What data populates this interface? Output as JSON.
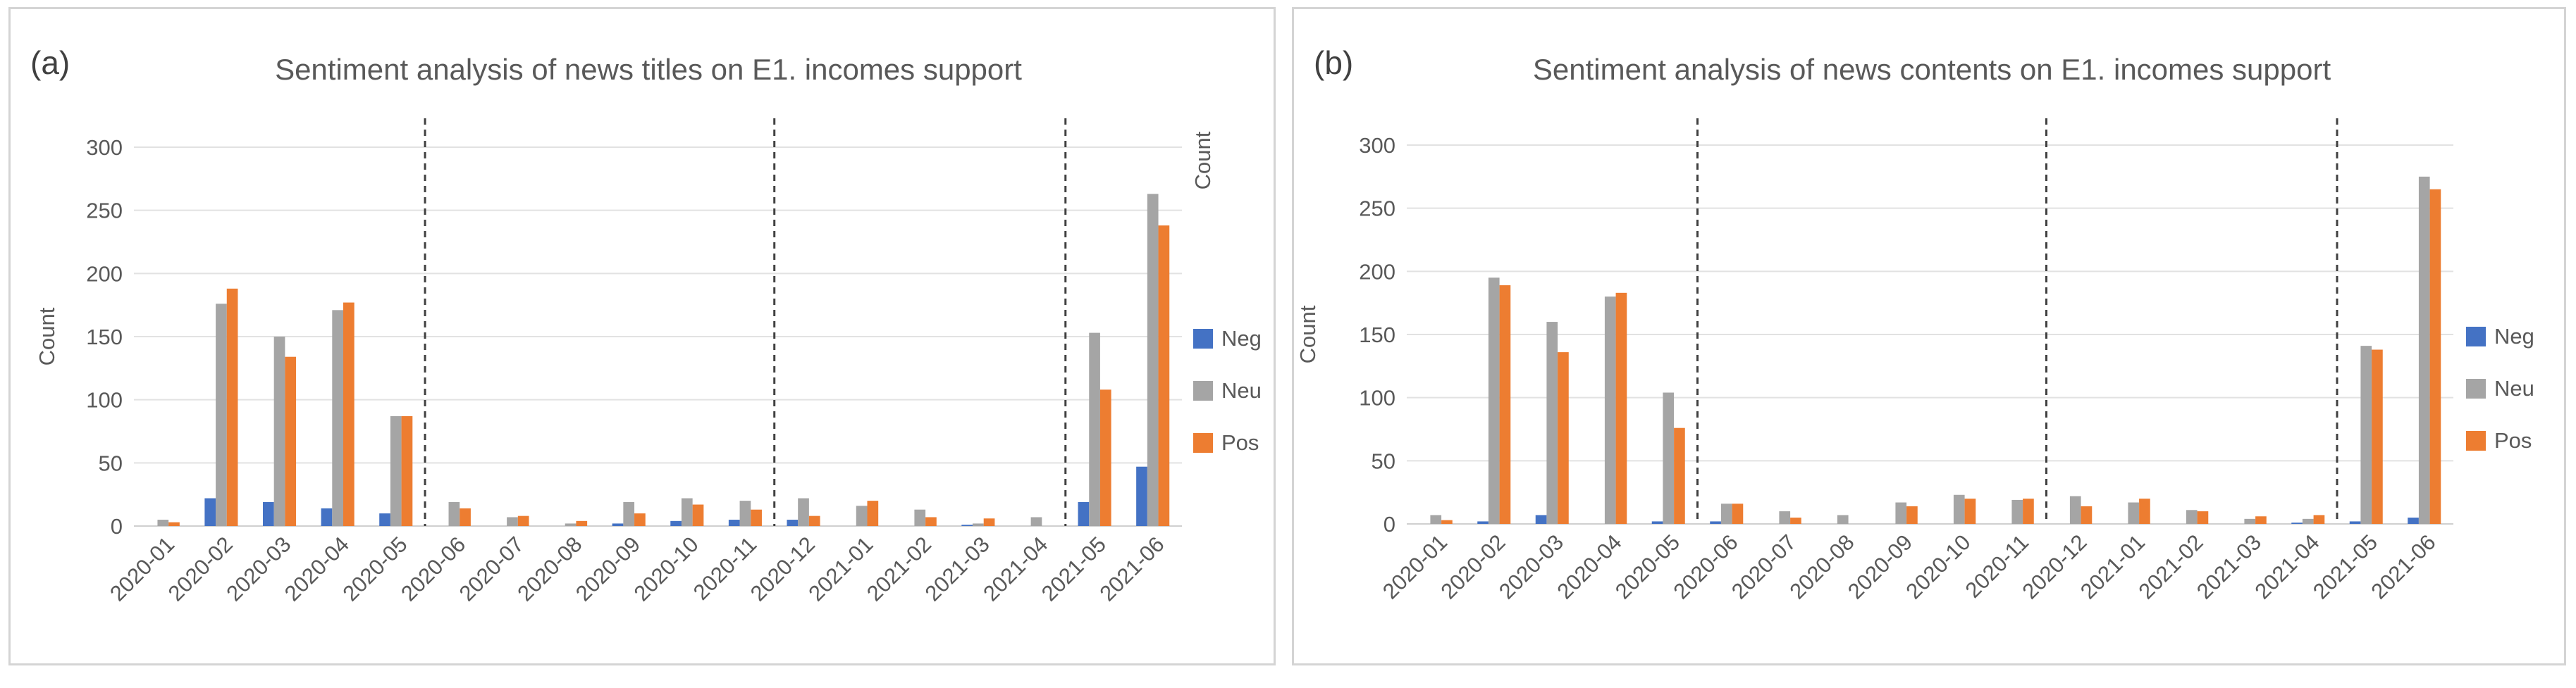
{
  "chart_data": [
    {
      "type": "bar",
      "panel_label": "(a)",
      "title": "Sentiment analysis of news titles on E1. incomes support",
      "xlabel": "",
      "ylabel": "Count",
      "right_label": "Count",
      "ylim": [
        0,
        300
      ],
      "yticks": [
        0,
        50,
        100,
        150,
        200,
        250,
        300
      ],
      "grid": true,
      "legend_position": "right",
      "categories": [
        "2020-01",
        "2020-02",
        "2020-03",
        "2020-04",
        "2020-05",
        "2020-06",
        "2020-07",
        "2020-08",
        "2020-09",
        "2020-10",
        "2020-11",
        "2020-12",
        "2021-01",
        "2021-02",
        "2021-03",
        "2021-04",
        "2021-05",
        "2021-06"
      ],
      "dividers_after": [
        "2020-05",
        "2020-11",
        "2021-04"
      ],
      "series": [
        {
          "name": "Neg",
          "color": "#4472C4",
          "values": [
            0,
            22,
            19,
            14,
            10,
            0,
            0,
            0,
            2,
            4,
            5,
            5,
            0,
            0,
            1,
            0,
            19,
            47
          ]
        },
        {
          "name": "Neu",
          "color": "#A5A5A5",
          "values": [
            5,
            176,
            150,
            171,
            87,
            19,
            7,
            2,
            19,
            22,
            20,
            22,
            16,
            13,
            2,
            7,
            153,
            263
          ]
        },
        {
          "name": "Pos",
          "color": "#ED7D31",
          "values": [
            3,
            188,
            134,
            177,
            87,
            14,
            8,
            4,
            10,
            17,
            13,
            8,
            20,
            7,
            6,
            0,
            108,
            238
          ]
        }
      ]
    },
    {
      "type": "bar",
      "panel_label": "(b)",
      "title": "Sentiment analysis of news contents on E1. incomes support",
      "xlabel": "",
      "ylabel": "Count",
      "ylim": [
        0,
        300
      ],
      "yticks": [
        0,
        50,
        100,
        150,
        200,
        250,
        300
      ],
      "grid": true,
      "legend_position": "right",
      "categories": [
        "2020-01",
        "2020-02",
        "2020-03",
        "2020-04",
        "2020-05",
        "2020-06",
        "2020-07",
        "2020-08",
        "2020-09",
        "2020-10",
        "2020-11",
        "2020-12",
        "2021-01",
        "2021-02",
        "2021-03",
        "2021-04",
        "2021-05",
        "2021-06"
      ],
      "dividers_after": [
        "2020-05",
        "2020-11",
        "2021-04"
      ],
      "series": [
        {
          "name": "Neg",
          "color": "#4472C4",
          "values": [
            0,
            2,
            7,
            0,
            2,
            2,
            0,
            0,
            0,
            0,
            0,
            0,
            0,
            0,
            0,
            1,
            2,
            5
          ]
        },
        {
          "name": "Neu",
          "color": "#A5A5A5",
          "values": [
            7,
            195,
            160,
            180,
            104,
            16,
            10,
            7,
            17,
            23,
            19,
            22,
            17,
            11,
            4,
            4,
            141,
            275
          ]
        },
        {
          "name": "Pos",
          "color": "#ED7D31",
          "values": [
            3,
            189,
            136,
            183,
            76,
            16,
            5,
            0,
            14,
            20,
            20,
            14,
            20,
            10,
            6,
            7,
            138,
            265
          ]
        }
      ]
    }
  ]
}
